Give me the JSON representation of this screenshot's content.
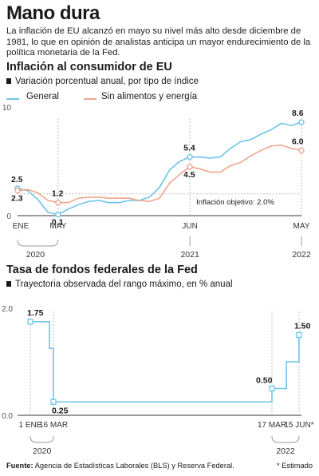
{
  "header": {
    "title": "Mano dura",
    "subtitle": "La inflación de EU alcanzó en mayo su nivel más alto desde diciembre de 1981, lo que en opinión de analistas anticipa un mayor endurecimiento de la política monetaria de la Fed."
  },
  "chart1": {
    "title": "Inflación al consumidor de EU",
    "subtitle": "Variación porcentual anual, por tipo de índice",
    "annotation": "Inflación objetivo: 2.0%",
    "colors": {
      "general": "#6cc5e8",
      "core": "#f0a58e",
      "target": "#bbbbbb",
      "point_fill": "#ffffff"
    }
  },
  "chart2": {
    "title": "Tasa de fondos federales de la Fed",
    "subtitle": "Trayectoria observada del rango máximo, en % anual",
    "color": "#6cc5e8"
  },
  "footer": {
    "label": "Fuente:",
    "text": "Agencia de Estadísticas Laborales (BLS) y Reserva Federal.",
    "note": "* Estimado"
  },
  "chart_data": [
    {
      "type": "line",
      "title": "Inflación al consumidor de EU",
      "subtitle": "Variación porcentual anual, por tipo de índice",
      "ylim": [
        0,
        10
      ],
      "yticks": [
        0,
        10
      ],
      "grid": false,
      "legend_position": "top-left",
      "x_tick_labels": [
        {
          "x": "2020-01",
          "label": "ENE"
        },
        {
          "x": "2020-05",
          "label": "MAY"
        },
        {
          "x": "2021-06",
          "label": "JUN"
        },
        {
          "x": "2022-05",
          "label": "MAY"
        }
      ],
      "x_group_labels": [
        {
          "x": "2020-03",
          "label": "2020"
        },
        {
          "x": "2021-06",
          "label": "2021"
        },
        {
          "x": "2022-05",
          "label": "2022"
        }
      ],
      "x": [
        "2020-01",
        "2020-02",
        "2020-03",
        "2020-04",
        "2020-05",
        "2020-06",
        "2020-07",
        "2020-08",
        "2020-09",
        "2020-10",
        "2020-11",
        "2020-12",
        "2021-01",
        "2021-02",
        "2021-03",
        "2021-04",
        "2021-05",
        "2021-06",
        "2021-07",
        "2021-08",
        "2021-09",
        "2021-10",
        "2021-11",
        "2021-12",
        "2022-01",
        "2022-02",
        "2022-03",
        "2022-04",
        "2022-05"
      ],
      "series": [
        {
          "name": "General",
          "values": [
            2.5,
            2.3,
            1.5,
            0.3,
            0.1,
            0.6,
            1.0,
            1.3,
            1.4,
            1.2,
            1.2,
            1.4,
            1.4,
            1.7,
            2.6,
            4.2,
            5.0,
            5.4,
            5.4,
            5.3,
            5.4,
            6.2,
            6.8,
            7.0,
            7.5,
            7.9,
            8.5,
            8.3,
            8.6
          ]
        },
        {
          "name": "Sin alimentos y energía",
          "values": [
            2.3,
            2.4,
            2.1,
            1.4,
            1.2,
            1.2,
            1.6,
            1.7,
            1.7,
            1.6,
            1.6,
            1.6,
            1.4,
            1.3,
            1.6,
            3.0,
            3.8,
            4.5,
            4.3,
            4.0,
            4.0,
            4.6,
            4.9,
            5.5,
            6.0,
            6.4,
            6.5,
            6.2,
            6.0
          ]
        }
      ],
      "reference_lines": [
        {
          "label": "Inflación objetivo: 2.0%",
          "y": 2.0
        }
      ],
      "point_labels": [
        {
          "series": "General",
          "x": "2020-01",
          "label": "2.5"
        },
        {
          "series": "Sin alimentos y energía",
          "x": "2020-01",
          "label": "2.3"
        },
        {
          "series": "Sin alimentos y energía",
          "x": "2020-05",
          "label": "1.2"
        },
        {
          "series": "General",
          "x": "2020-05",
          "label": "0.1"
        },
        {
          "series": "General",
          "x": "2021-06",
          "label": "5.4"
        },
        {
          "series": "Sin alimentos y energía",
          "x": "2021-06",
          "label": "4.5"
        },
        {
          "series": "General",
          "x": "2022-05",
          "label": "8.6"
        },
        {
          "series": "Sin alimentos y energía",
          "x": "2022-05",
          "label": "6.0"
        }
      ]
    },
    {
      "type": "line",
      "title": "Tasa de fondos federales de la Fed",
      "subtitle": "Trayectoria observada del rango máximo, en % anual",
      "ylim": [
        0,
        2
      ],
      "yticks": [
        0.0,
        2.0
      ],
      "ytick_labels": [
        "0.0",
        "2.0"
      ],
      "grid": false,
      "x_tick_labels": [
        {
          "x": "2020-01-01",
          "label": "1 ENE"
        },
        {
          "x": "2020-03-16",
          "label": "16 MAR"
        },
        {
          "x": "2022-03-17",
          "label": "17 MAR"
        },
        {
          "x": "2022-06-15",
          "label": "15 JUN*"
        }
      ],
      "x_group_labels": [
        {
          "x": "2020-02-08",
          "label": "2020"
        },
        {
          "x": "2022-05-01",
          "label": "2022"
        }
      ],
      "series": [
        {
          "name": "",
          "step": true,
          "points": [
            {
              "x": "2020-01-01",
              "y": 1.75
            },
            {
              "x": "2020-03-03",
              "y": 1.25
            },
            {
              "x": "2020-03-16",
              "y": 0.25
            },
            {
              "x": "2022-03-17",
              "y": 0.5
            },
            {
              "x": "2022-05-04",
              "y": 1.0
            },
            {
              "x": "2022-06-15",
              "y": 1.5
            }
          ]
        }
      ],
      "point_labels": [
        {
          "x": "2020-01-01",
          "label": "1.75"
        },
        {
          "x": "2020-03-16",
          "label": "0.25"
        },
        {
          "x": "2022-03-17",
          "label": "0.50"
        },
        {
          "x": "2022-06-15",
          "label": "1.50"
        }
      ]
    }
  ]
}
